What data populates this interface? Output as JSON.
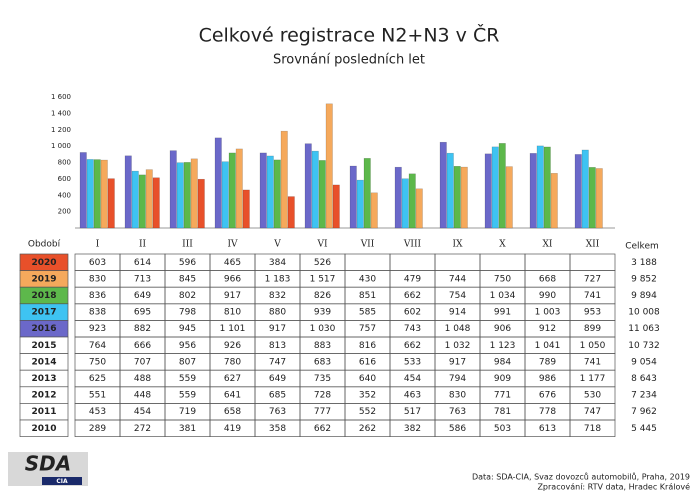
{
  "chart_data": {
    "type": "bar",
    "title": "Celkové registrace N2+N3 v ČR",
    "subtitle": "Srovnání posledních let",
    "period_label": "Období",
    "total_header": "Celkem",
    "categories": [
      "I",
      "II",
      "III",
      "IV",
      "V",
      "VI",
      "VII",
      "VIII",
      "IX",
      "X",
      "XI",
      "XII"
    ],
    "ylim": [
      0,
      1600
    ],
    "yticks": [
      {
        "value": 200,
        "label": "200"
      },
      {
        "value": 400,
        "label": "400"
      },
      {
        "value": 600,
        "label": "600"
      },
      {
        "value": 800,
        "label": "800"
      },
      {
        "value": 1000,
        "label": "1 000"
      },
      {
        "value": 1200,
        "label": "1 200"
      },
      {
        "value": 1400,
        "label": "1 400"
      },
      {
        "value": 1600,
        "label": "1 600"
      }
    ],
    "series": [
      {
        "name": "2020",
        "color": "#e8502a",
        "values": [
          603,
          614,
          596,
          465,
          384,
          526,
          null,
          null,
          null,
          null,
          null,
          null
        ],
        "value_labels": [
          "603",
          "614",
          "596",
          "465",
          "384",
          "526",
          null,
          null,
          null,
          null,
          null,
          null
        ],
        "total": 3188,
        "total_label": "3 188"
      },
      {
        "name": "2019",
        "color": "#f5a95c",
        "values": [
          830,
          713,
          845,
          966,
          1183,
          1517,
          430,
          479,
          744,
          750,
          668,
          727
        ],
        "value_labels": [
          "830",
          "713",
          "845",
          "966",
          "1 183",
          "1 517",
          "430",
          "479",
          "744",
          "750",
          "668",
          "727"
        ],
        "total": 9852,
        "total_label": "9 852"
      },
      {
        "name": "2018",
        "color": "#5db84b",
        "values": [
          836,
          649,
          802,
          917,
          832,
          826,
          851,
          662,
          754,
          1034,
          990,
          741
        ],
        "value_labels": [
          "836",
          "649",
          "802",
          "917",
          "832",
          "826",
          "851",
          "662",
          "754",
          "1 034",
          "990",
          "741"
        ],
        "total": 9894,
        "total_label": "9 894"
      },
      {
        "name": "2017",
        "color": "#3ec3f2",
        "values": [
          838,
          695,
          798,
          810,
          880,
          939,
          585,
          602,
          914,
          991,
          1003,
          953
        ],
        "value_labels": [
          "838",
          "695",
          "798",
          "810",
          "880",
          "939",
          "585",
          "602",
          "914",
          "991",
          "1 003",
          "953"
        ],
        "total": 10008,
        "total_label": "10 008"
      },
      {
        "name": "2016",
        "color": "#6b68c9",
        "values": [
          923,
          882,
          945,
          1101,
          917,
          1030,
          757,
          743,
          1048,
          906,
          912,
          899
        ],
        "value_labels": [
          "923",
          "882",
          "945",
          "1 101",
          "917",
          "1 030",
          "757",
          "743",
          "1 048",
          "906",
          "912",
          "899"
        ],
        "total": 11063,
        "total_label": "11 063"
      },
      {
        "name": "2015",
        "values": [
          764,
          666,
          956,
          926,
          813,
          883,
          816,
          662,
          1032,
          1123,
          1041,
          1050
        ],
        "value_labels": [
          "764",
          "666",
          "956",
          "926",
          "813",
          "883",
          "816",
          "662",
          "1 032",
          "1 123",
          "1 041",
          "1 050"
        ],
        "total": 10732,
        "total_label": "10 732"
      },
      {
        "name": "2014",
        "values": [
          750,
          707,
          807,
          780,
          747,
          683,
          616,
          533,
          917,
          984,
          789,
          741
        ],
        "value_labels": [
          "750",
          "707",
          "807",
          "780",
          "747",
          "683",
          "616",
          "533",
          "917",
          "984",
          "789",
          "741"
        ],
        "total": 9054,
        "total_label": "9 054"
      },
      {
        "name": "2013",
        "values": [
          625,
          488,
          559,
          627,
          649,
          735,
          640,
          454,
          794,
          909,
          986,
          1177
        ],
        "value_labels": [
          "625",
          "488",
          "559",
          "627",
          "649",
          "735",
          "640",
          "454",
          "794",
          "909",
          "986",
          "1 177"
        ],
        "total": 8643,
        "total_label": "8 643"
      },
      {
        "name": "2012",
        "values": [
          551,
          448,
          559,
          641,
          685,
          728,
          352,
          463,
          830,
          771,
          676,
          530
        ],
        "value_labels": [
          "551",
          "448",
          "559",
          "641",
          "685",
          "728",
          "352",
          "463",
          "830",
          "771",
          "676",
          "530"
        ],
        "total": 7234,
        "total_label": "7 234"
      },
      {
        "name": "2011",
        "values": [
          453,
          454,
          719,
          658,
          763,
          777,
          552,
          517,
          763,
          781,
          778,
          747
        ],
        "value_labels": [
          "453",
          "454",
          "719",
          "658",
          "763",
          "777",
          "552",
          "517",
          "763",
          "781",
          "778",
          "747"
        ],
        "total": 7962,
        "total_label": "7 962"
      },
      {
        "name": "2010",
        "values": [
          289,
          272,
          381,
          419,
          358,
          662,
          262,
          382,
          586,
          503,
          613,
          718
        ],
        "value_labels": [
          "289",
          "272",
          "381",
          "419",
          "358",
          "662",
          "262",
          "382",
          "586",
          "503",
          "613",
          "718"
        ],
        "total": 5445,
        "total_label": "5 445"
      }
    ],
    "logo": "SDA",
    "logo_sub": "CIA",
    "source": "Data: SDA-CIA, Svaz dovozců automobilů, Praha, 2019",
    "processing": "Zpracování: RTV data, Hradec Králové"
  }
}
